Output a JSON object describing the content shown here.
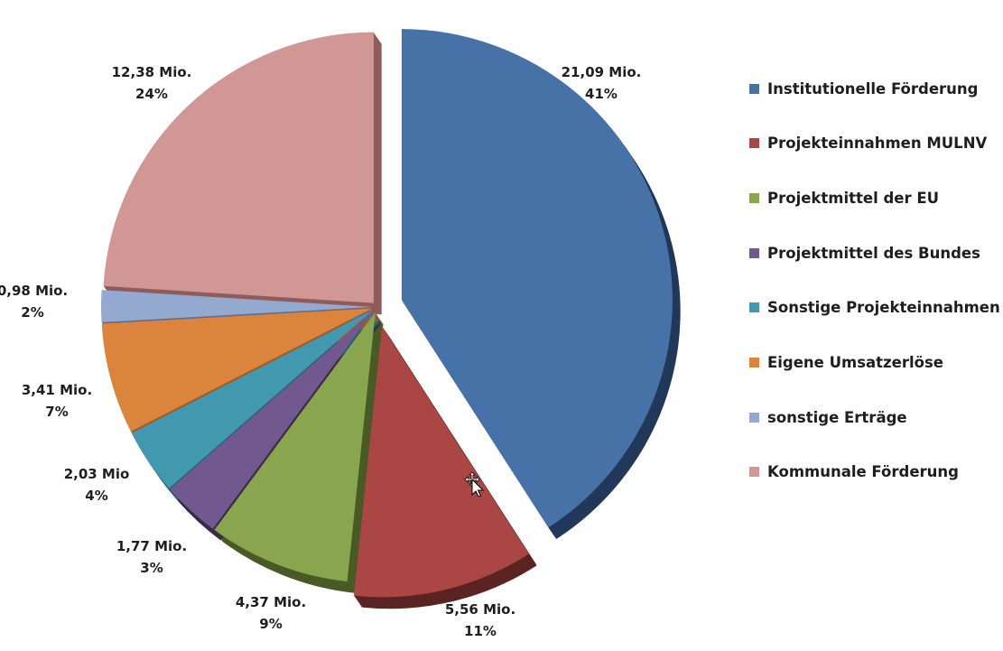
{
  "chart_data": {
    "type": "pie",
    "title": "",
    "legend_position": "right",
    "slices": [
      {
        "name": "Institutionelle Förderung",
        "value": 21.09,
        "value_label": "21,09 Mio.",
        "pct_label": "41%",
        "color": "#4672a8",
        "side": "#22385a"
      },
      {
        "name": "Projekteinnahmen MULNV",
        "value": 5.56,
        "value_label": "5,56 Mio.",
        "pct_label": "11%",
        "color": "#aa4644",
        "side": "#5a2422"
      },
      {
        "name": "Projektmittel der EU",
        "value": 4.37,
        "value_label": "4,37 Mio.",
        "pct_label": "9%",
        "color": "#89a54e",
        "side": "#4a5a26"
      },
      {
        "name": "Projektmittel des Bundes",
        "value": 1.77,
        "value_label": "1,77 Mio.",
        "pct_label": "3%",
        "color": "#71588f",
        "side": "#3a2c4a"
      },
      {
        "name": "Sonstige Projekteinnahmen",
        "value": 2.03,
        "value_label": "2,03 Mio",
        "pct_label": "4%",
        "color": "#4198af",
        "side": "#2a6272"
      },
      {
        "name": "Eigene Umsatzerlöse",
        "value": 3.41,
        "value_label": "3,41 Mio.",
        "pct_label": "7%",
        "color": "#db843d",
        "side": "#a05a22"
      },
      {
        "name": "sonstige Erträge",
        "value": 0.98,
        "value_label": "0,98 Mio.",
        "pct_label": "2%",
        "color": "#93a9cf",
        "side": "#5e6e8c"
      },
      {
        "name": "Kommunale Förderung",
        "value": 12.38,
        "value_label": "12,38 Mio.",
        "pct_label": "24%",
        "color": "#d09795",
        "side": "#8e5d5b"
      }
    ]
  },
  "cursor": {
    "icon": "move-cursor-icon"
  }
}
